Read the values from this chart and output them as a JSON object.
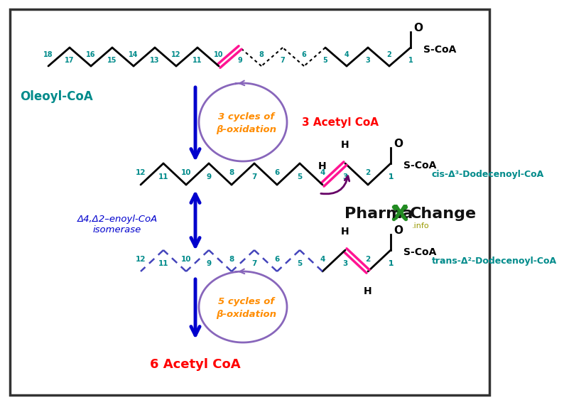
{
  "bg_color": "#ffffff",
  "border_color": "#333333",
  "teal": "#008B8B",
  "orange": "#FF8C00",
  "red": "#FF0000",
  "blue": "#0000CD",
  "magenta": "#FF1493",
  "purple": "#8866BB",
  "black": "#000000",
  "green": "#228B22",
  "dark_green": "#006400",
  "oleoyl_label": "Oleoyl-CoA",
  "cis_label": "cis-Δ³-Dodecenoyl-CoA",
  "trans_label": "trans-Δ²-Dodecenoyl-CoA",
  "isomerase_line1": "Δ4,Δ2–enoyl-CoA",
  "isomerase_line2": "isomerase",
  "cycles3_line1": "3 cycles of",
  "cycles3_line2": "β-oxidation",
  "acetyl3_label": "3 Acetyl CoA",
  "cycles5_line1": "5 cycles of",
  "cycles5_line2": "β-oxidation",
  "acetyl6_label": "6 Acetyl CoA"
}
